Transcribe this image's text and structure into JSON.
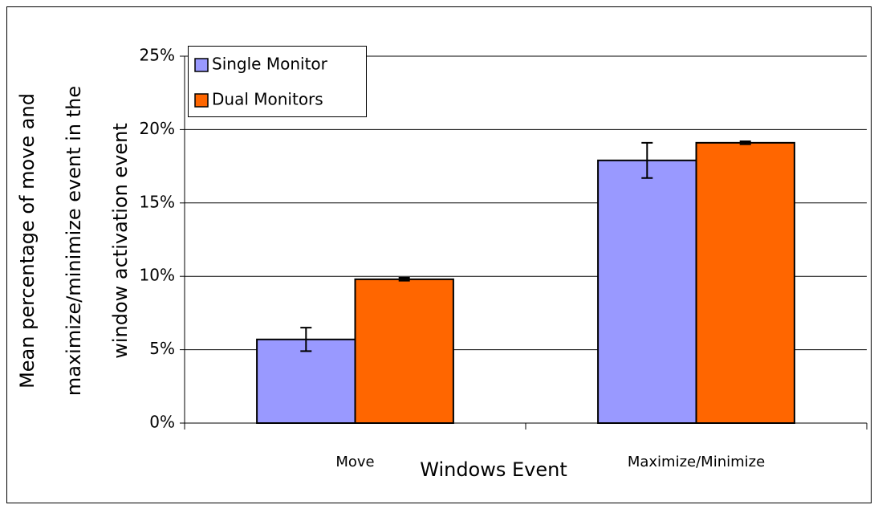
{
  "chart_data": {
    "type": "bar",
    "ylabel": [
      "Mean percentage of move and",
      "maximize/minimize event in the",
      "window activation event"
    ],
    "xlabel": "Windows Event",
    "categories": [
      "Move",
      "Maximize/Minimize"
    ],
    "series": [
      {
        "name": "Single Monitor",
        "color": "#9999ff",
        "values": [
          5.7,
          17.9
        ],
        "errors": [
          0.8,
          1.2
        ]
      },
      {
        "name": "Dual Monitors",
        "color": "#ff6600",
        "values": [
          9.8,
          19.1
        ],
        "errors": [
          0.1,
          0.1
        ]
      }
    ],
    "ylim": [
      0,
      25
    ],
    "yticks": [
      {
        "value": 0,
        "label": "0%"
      },
      {
        "value": 5,
        "label": "5%"
      },
      {
        "value": 10,
        "label": "10%"
      },
      {
        "value": 15,
        "label": "15%"
      },
      {
        "value": 20,
        "label": "20%"
      },
      {
        "value": 25,
        "label": "25%"
      }
    ],
    "grid": true,
    "legend": "upper left"
  }
}
